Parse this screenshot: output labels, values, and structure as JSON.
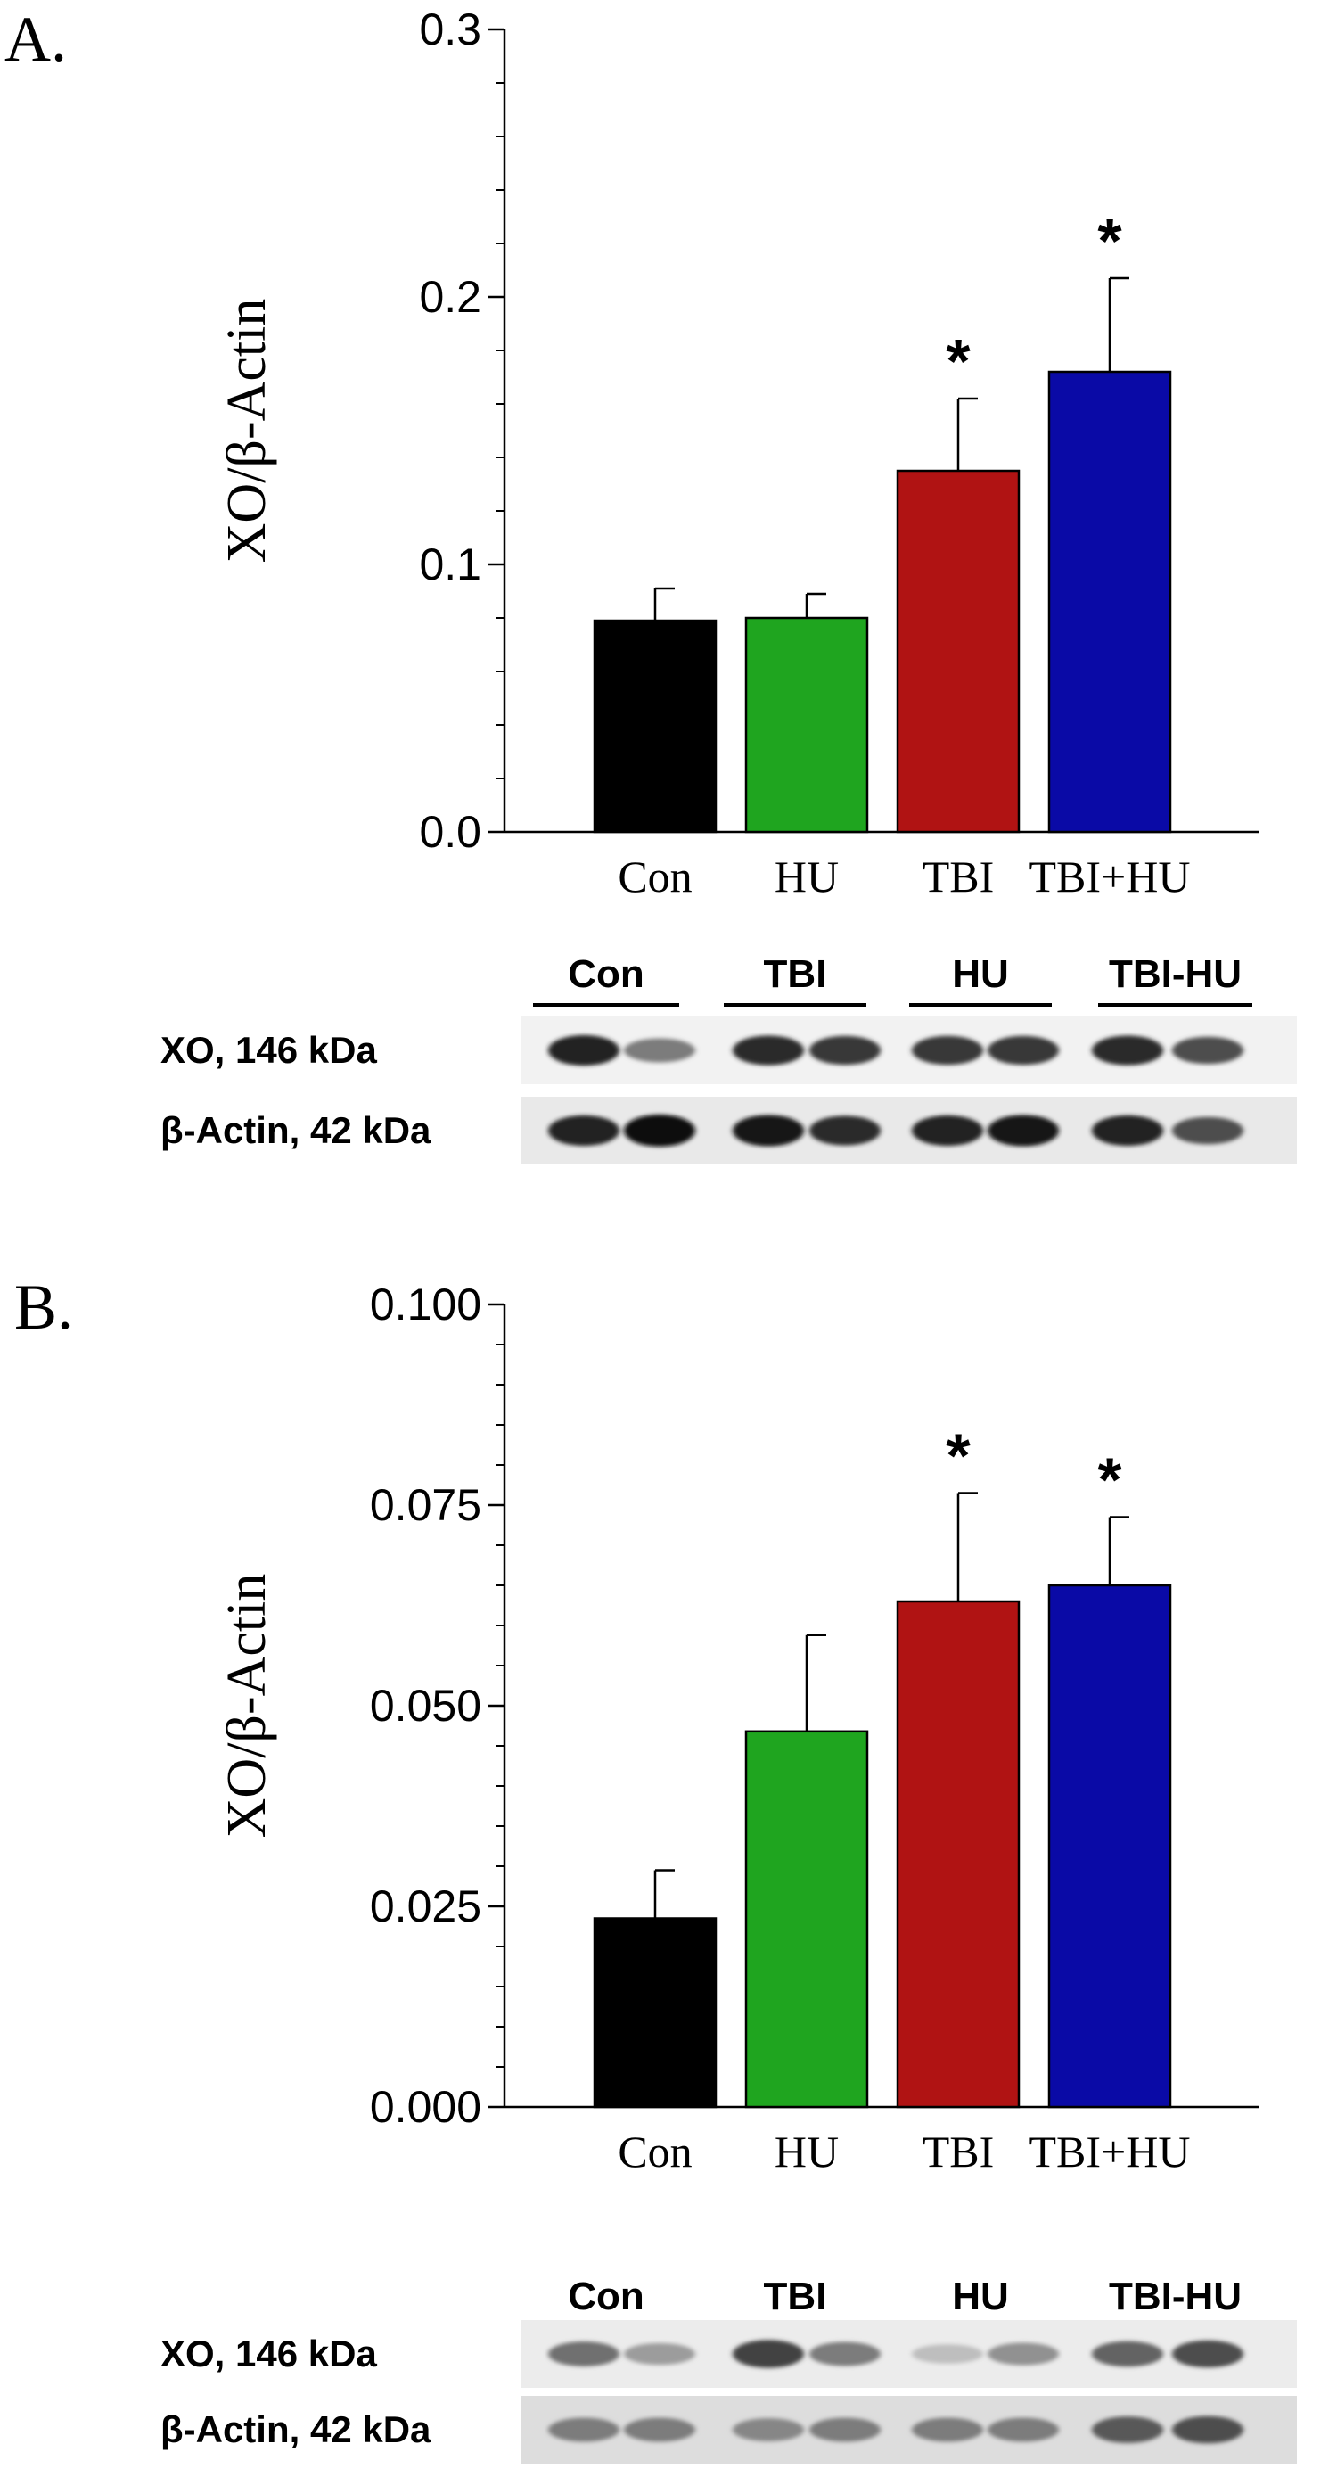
{
  "chart_data": [
    {
      "type": "bar",
      "panel_label": "A.",
      "categories": [
        "Con",
        "HU",
        "TBI",
        "TBI+HU"
      ],
      "values": [
        0.079,
        0.08,
        0.135,
        0.172
      ],
      "errors": [
        0.012,
        0.009,
        0.027,
        0.035
      ],
      "significant": [
        false,
        false,
        true,
        true
      ],
      "significance_marker": "*",
      "colors": [
        "#000000",
        "#1fa51f",
        "#b01313",
        "#0a0aa6"
      ],
      "ylabel": "XO/β-Actin",
      "ylim": [
        0,
        0.3
      ],
      "yticks": [
        0,
        0.1,
        0.2,
        0.3
      ],
      "ytick_labels": [
        "0.0",
        "0.1",
        "0.2",
        "0.3"
      ],
      "blot": {
        "groups": [
          "Con",
          "TBI",
          "HU",
          "TBI-HU"
        ],
        "rows": [
          {
            "label": "XO, 146 kDa",
            "intensities": [
              0.9,
              0.5,
              0.85,
              0.8,
              0.8,
              0.8,
              0.85,
              0.7
            ]
          },
          {
            "label": "β-Actin, 42 kDa",
            "intensities": [
              0.9,
              1.0,
              0.95,
              0.85,
              0.9,
              0.95,
              0.9,
              0.7
            ]
          }
        ]
      }
    },
    {
      "type": "bar",
      "panel_label": "B.",
      "categories": [
        "Con",
        "HU",
        "TBI",
        "TBI+HU"
      ],
      "values": [
        0.0235,
        0.0468,
        0.063,
        0.065
      ],
      "errors": [
        0.006,
        0.012,
        0.0135,
        0.0085
      ],
      "significant": [
        false,
        false,
        true,
        true
      ],
      "significance_marker": "*",
      "colors": [
        "#000000",
        "#1fa51f",
        "#b01313",
        "#0a0aa6"
      ],
      "ylabel": "XO/β-Actin",
      "ylim": [
        0,
        0.1
      ],
      "yticks": [
        0,
        0.025,
        0.05,
        0.075,
        0.1
      ],
      "ytick_labels": [
        "0.000",
        "0.025",
        "0.050",
        "0.075",
        "0.100"
      ],
      "blot": {
        "groups": [
          "Con",
          "TBI",
          "HU",
          "TBI-HU"
        ],
        "rows": [
          {
            "label": "XO, 146 kDa",
            "intensities": [
              0.55,
              0.35,
              0.75,
              0.5,
              0.2,
              0.4,
              0.6,
              0.7
            ]
          },
          {
            "label": "β-Actin, 42 kDa",
            "intensities": [
              0.5,
              0.5,
              0.45,
              0.5,
              0.5,
              0.5,
              0.65,
              0.7
            ]
          }
        ]
      }
    }
  ]
}
